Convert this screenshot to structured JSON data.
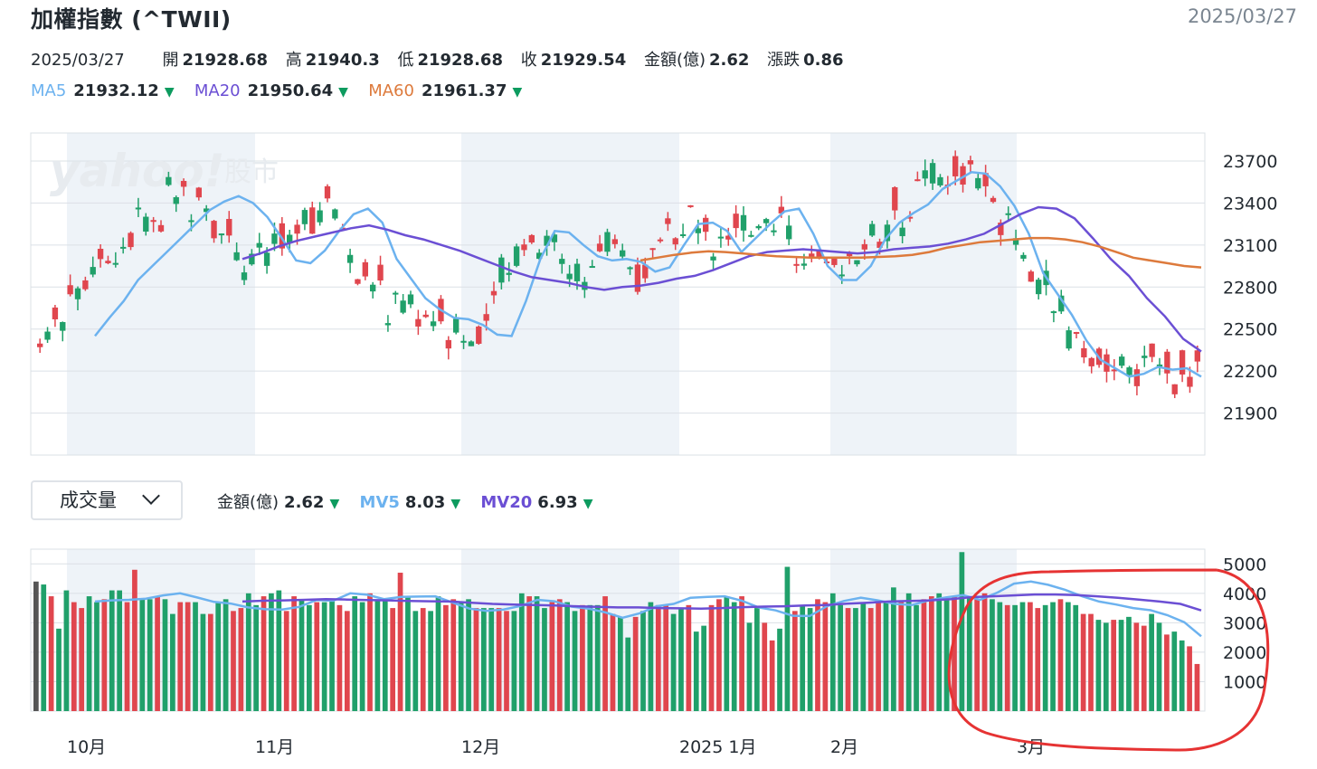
{
  "header": {
    "title": "加權指數 (^TWII)",
    "date": "2025/03/27"
  },
  "quote": {
    "date": "2025/03/27",
    "open_label": "開",
    "open": "21928.68",
    "high_label": "高",
    "high": "21940.3",
    "low_label": "低",
    "low": "21928.68",
    "close_label": "收",
    "close": "21929.54",
    "amount_label": "金額(億)",
    "amount": "2.62",
    "change_label": "漲跌",
    "change": "0.86"
  },
  "ma": {
    "ma5_label": "MA5",
    "ma5": "21932.12",
    "ma20_label": "MA20",
    "ma20": "21950.64",
    "ma60_label": "MA60",
    "ma60": "21961.37",
    "down_arrow": "▼"
  },
  "volume_panel": {
    "selector_value": "成交量",
    "amount_label": "金額(億)",
    "amount": "2.62",
    "mv5_label": "MV5",
    "mv5": "8.03",
    "mv20_label": "MV20",
    "mv20": "6.93"
  },
  "watermark": {
    "brand": "yahoo!",
    "suffix": "股市"
  },
  "colors": {
    "up": "#e0464e",
    "down": "#20a06a",
    "ma5": "#6cb2ef",
    "ma20": "#6b4fd4",
    "ma60": "#dd7a3c",
    "band": "#eef3f8",
    "grid": "#dbe0e6",
    "annotation": "#e63333"
  },
  "chart_data": [
    {
      "type": "candlestick",
      "title": "加權指數 (^TWII)",
      "x_ticks": [
        "10月",
        "11月",
        "12月",
        "2025 1月",
        "2月",
        "3月"
      ],
      "y_ticks": [
        21900,
        22200,
        22500,
        22800,
        23100,
        23400,
        23700
      ],
      "ylim": [
        21600,
        23900
      ],
      "grid": true,
      "series": [
        {
          "name": "MA5",
          "values": [
            22450,
            22580,
            22700,
            22850,
            22950,
            23050,
            23150,
            23250,
            23350,
            23410,
            23450,
            23400,
            23300,
            23150,
            22990,
            22970,
            23060,
            23200,
            23320,
            23360,
            23260,
            23000,
            22860,
            22720,
            22640,
            22580,
            22570,
            22530,
            22460,
            22450,
            22700,
            23000,
            23200,
            23190,
            23100,
            23020,
            22990,
            23000,
            22980,
            22910,
            22940,
            23100,
            23250,
            23260,
            23200,
            23050,
            23150,
            23250,
            23340,
            23360,
            23180,
            22950,
            22850,
            22850,
            22950,
            23140,
            23260,
            23330,
            23390,
            23500,
            23560,
            23620,
            23610,
            23520,
            23380,
            23180,
            22900,
            22750,
            22600,
            22420,
            22280,
            22220,
            22160,
            22180,
            22230,
            22210,
            22220,
            22160
          ]
        },
        {
          "name": "MA20",
          "values": [
            23000,
            23040,
            23090,
            23130,
            23160,
            23190,
            23220,
            23240,
            23210,
            23170,
            23140,
            23100,
            23060,
            23010,
            22960,
            22910,
            22870,
            22850,
            22830,
            22800,
            22780,
            22800,
            22810,
            22830,
            22860,
            22880,
            22920,
            22970,
            23020,
            23050,
            23060,
            23070,
            23060,
            23050,
            23040,
            23050,
            23070,
            23080,
            23090,
            23110,
            23140,
            23180,
            23250,
            23320,
            23370,
            23360,
            23290,
            23150,
            23000,
            22880,
            22720,
            22590,
            22430,
            22340
          ]
        },
        {
          "name": "MA60",
          "values": [
            22990,
            23010,
            23030,
            23045,
            23055,
            23050,
            23040,
            23030,
            23020,
            23015,
            23010,
            23010,
            23010,
            23010,
            23015,
            23020,
            23030,
            23050,
            23080,
            23100,
            23120,
            23130,
            23140,
            23150,
            23150,
            23140,
            23120,
            23090,
            23050,
            23010,
            22990,
            22970,
            22950,
            22940
          ]
        }
      ]
    },
    {
      "type": "bar",
      "title": "成交量",
      "y_ticks": [
        1000,
        2000,
        3000,
        4000,
        5000
      ],
      "ylim": [
        0,
        5500
      ],
      "grid": true,
      "series": [
        {
          "name": "成交量",
          "values": [
            4400,
            4300,
            3900,
            2800,
            4100,
            3700,
            3500,
            3900,
            3700,
            3800,
            4100,
            4100,
            3700,
            4800,
            3800,
            3800,
            3900,
            3800,
            3300,
            3700,
            3700,
            3700,
            3300,
            3300,
            3700,
            3800,
            3400,
            3500,
            4000,
            3600,
            3900,
            4000,
            4100,
            3400,
            3900,
            3800,
            3600,
            3700,
            3700,
            3800,
            3600,
            3400,
            3900,
            3700,
            4000,
            3800,
            3800,
            3500,
            4700,
            3900,
            3400,
            3500,
            3400,
            3900,
            3600,
            3800,
            3700,
            3800,
            3500,
            3500,
            3500,
            3500,
            3400,
            3400,
            4000,
            3900,
            3900,
            3500,
            3700,
            3800,
            3700,
            3400,
            3600,
            3600,
            3600,
            3900,
            3300,
            3200,
            2500,
            3200,
            3400,
            3700,
            3600,
            3600,
            3300,
            3500,
            3600,
            2700,
            2900,
            3600,
            3800,
            3900,
            3700,
            3900,
            3000,
            3500,
            3000,
            2400,
            2800,
            4900,
            3400,
            3600,
            3500,
            3800,
            3700,
            4000,
            3600,
            3500,
            3500,
            3700,
            3500,
            3700,
            3700,
            4200,
            3700,
            4000,
            3600,
            3800,
            3900,
            4000,
            3800,
            3900,
            5400,
            3900,
            3800,
            4000,
            3800,
            3700,
            3600,
            3600,
            3700,
            3700,
            3500,
            3600,
            3700,
            3800,
            3700,
            3600,
            3300,
            3300,
            3100,
            3000,
            3100,
            3100,
            3200,
            3000,
            2900,
            3300,
            3000,
            2600,
            2700,
            2400,
            2200,
            1600
          ]
        },
        {
          "name": "MV5",
          "values": [
            3720,
            3760,
            3780,
            3820,
            3930,
            4000,
            3860,
            3710,
            3650,
            3520,
            3460,
            3450,
            3540,
            3770,
            3750,
            4000,
            3950,
            3800,
            3880,
            3890,
            3900,
            3690,
            3480,
            3400,
            3450,
            3570,
            3780,
            3730,
            3550,
            3480,
            3350,
            3170,
            3320,
            3560,
            3640,
            3850,
            3880,
            3900,
            3750,
            3520,
            3420,
            3240,
            3230,
            3560,
            3740,
            3850,
            3760,
            3640,
            3600,
            3760,
            3860,
            3940,
            3780,
            4020,
            4330,
            4400,
            4290,
            4120,
            3900,
            3720,
            3620,
            3500,
            3430,
            3260,
            3020,
            2540
          ]
        },
        {
          "name": "MV20",
          "values": [
            3720,
            3750,
            3760,
            3780,
            3800,
            3790,
            3770,
            3760,
            3740,
            3730,
            3720,
            3680,
            3640,
            3620,
            3600,
            3590,
            3560,
            3540,
            3520,
            3520,
            3500,
            3490,
            3480,
            3500,
            3530,
            3550,
            3560,
            3590,
            3600,
            3650,
            3680,
            3720,
            3740,
            3760,
            3800,
            3870,
            3900,
            3930,
            3960,
            3960,
            3940,
            3900,
            3850,
            3790,
            3720,
            3640,
            3420
          ]
        }
      ]
    }
  ],
  "annotation": {
    "shape": "hand-drawn ellipse",
    "target": "3月 volume bars"
  }
}
